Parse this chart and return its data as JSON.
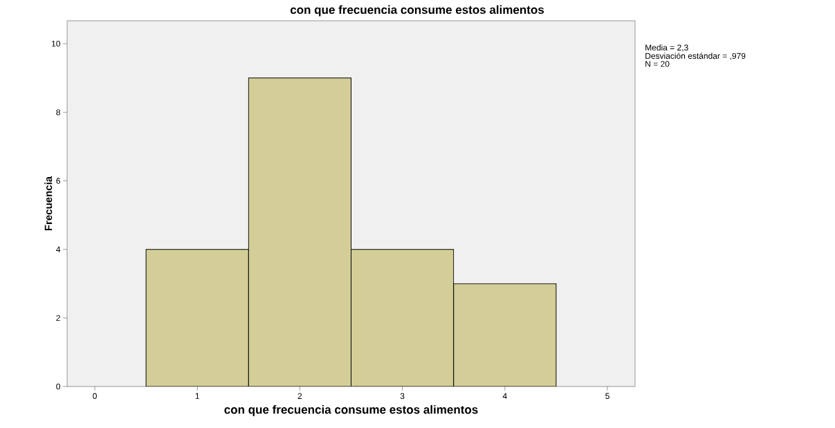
{
  "chart_data": {
    "type": "histogram",
    "title": "con que frecuencia consume estos alimentos",
    "xlabel": "con que frecuencia consume estos alimentos",
    "ylabel": "Frecuencia",
    "bins": [
      0.5,
      1.5,
      2.5,
      3.5,
      4.5
    ],
    "values": [
      4,
      9,
      4,
      3
    ],
    "color": "#d3ce97",
    "xlim": [
      -0.27,
      5.27
    ],
    "xticks": [
      0,
      1,
      2,
      3,
      4,
      5
    ],
    "ylim": [
      0,
      10.67
    ],
    "yticks": [
      0,
      2,
      4,
      6,
      8,
      10
    ],
    "annotations": [
      "Media = 2,3",
      "Desviación estándar = ,979",
      "N = 20"
    ],
    "grid": false
  }
}
